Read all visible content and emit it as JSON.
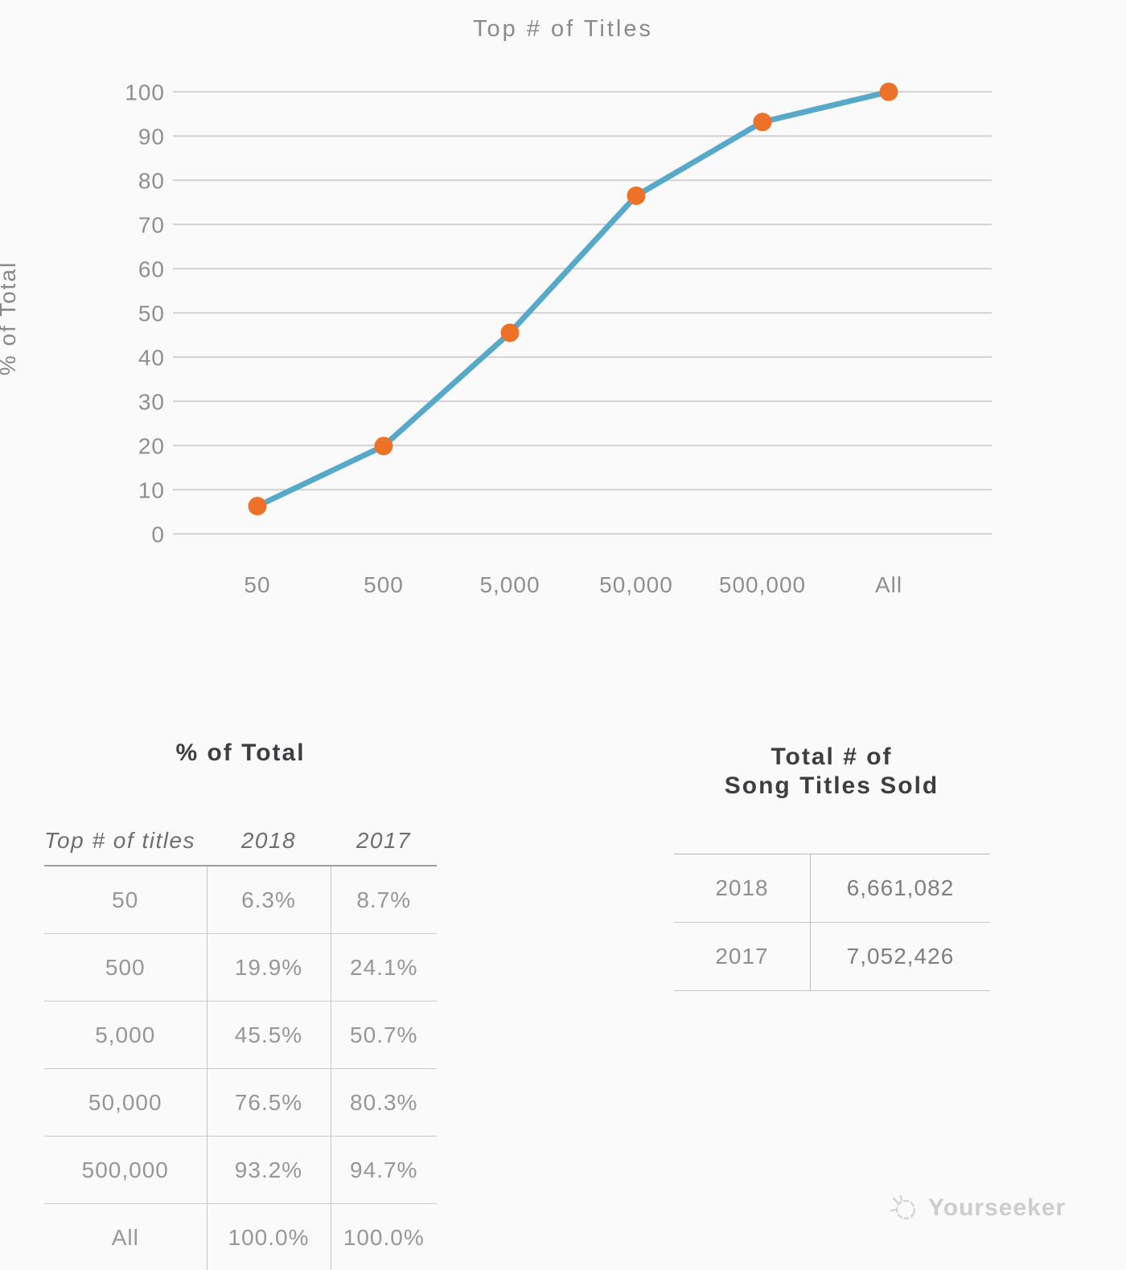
{
  "chart_data": {
    "type": "line",
    "title": "Top # of Titles",
    "ylabel": "% of Total",
    "categories": [
      "50",
      "500",
      "5,000",
      "50,000",
      "500,000",
      "All"
    ],
    "series": [
      {
        "name": "2018",
        "values": [
          6.3,
          19.9,
          45.5,
          76.5,
          93.2,
          100.0
        ]
      }
    ],
    "ylim": [
      0,
      100
    ],
    "ytick_step": 10,
    "grid": "horizontal",
    "legend": "none",
    "line_color": "#57a9ca",
    "marker_color": "#ed7227",
    "gridline_color": "#d1d1d1"
  },
  "left_table": {
    "title": "% of Total",
    "columns": [
      "Top # of titles",
      "2018",
      "2017"
    ],
    "rows": [
      [
        "50",
        "6.3%",
        "8.7%"
      ],
      [
        "500",
        "19.9%",
        "24.1%"
      ],
      [
        "5,000",
        "45.5%",
        "50.7%"
      ],
      [
        "50,000",
        "76.5%",
        "80.3%"
      ],
      [
        "500,000",
        "93.2%",
        "94.7%"
      ],
      [
        "All",
        "100.0%",
        "100.0%"
      ]
    ]
  },
  "right_table": {
    "title_line1": "Total # of",
    "title_line2": "Song Titles Sold",
    "rows": [
      [
        "2018",
        "6,661,082"
      ],
      [
        "2017",
        "7,052,426"
      ]
    ]
  },
  "watermark": {
    "text": "Yourseeker"
  }
}
